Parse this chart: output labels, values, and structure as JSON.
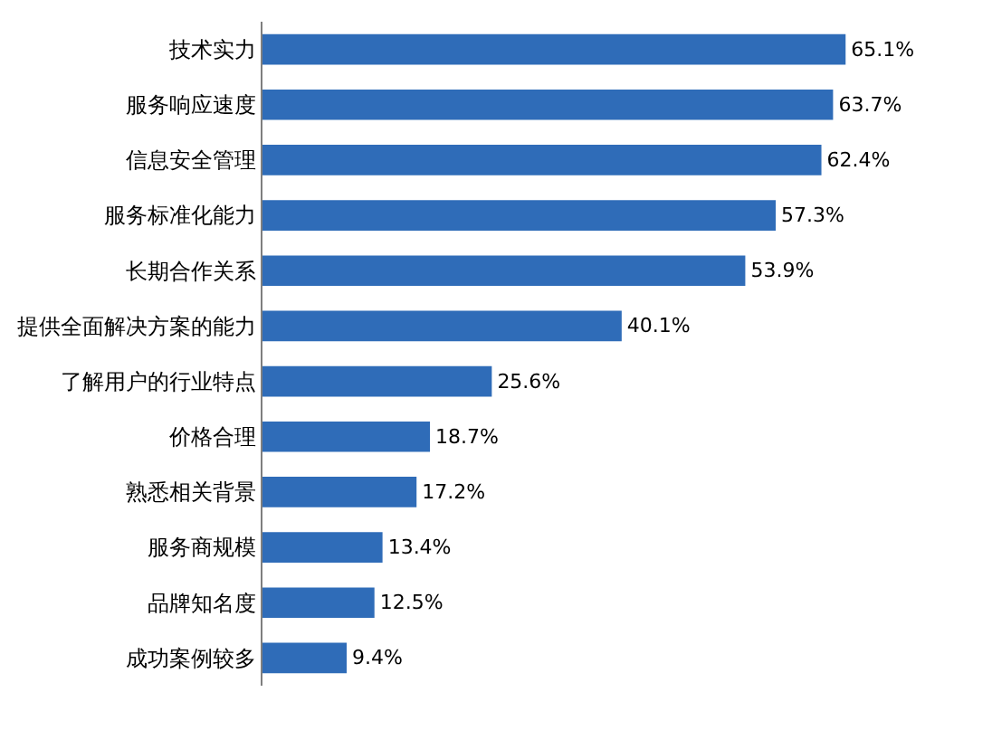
{
  "chart_data": {
    "type": "bar",
    "orientation": "horizontal",
    "categories": [
      "技术实力",
      "服务响应速度",
      "信息安全管理",
      "服务标准化能力",
      "长期合作关系",
      "提供全面解决方案的能力",
      "了解用户的行业特点",
      "价格合理",
      "熟悉相关背景",
      "服务商规模",
      "品牌知名度",
      "成功案例较多"
    ],
    "values": [
      65.1,
      63.7,
      62.4,
      57.3,
      53.9,
      40.1,
      25.6,
      18.7,
      17.2,
      13.4,
      12.5,
      9.4
    ],
    "value_labels": [
      "65.1%",
      "63.7%",
      "62.4%",
      "57.3%",
      "53.9%",
      "40.1%",
      "25.6%",
      "18.7%",
      "17.2%",
      "13.4%",
      "12.5%",
      "9.4%"
    ],
    "color": "#2f6cb8",
    "legend": false,
    "tick_labels": "y"
  }
}
